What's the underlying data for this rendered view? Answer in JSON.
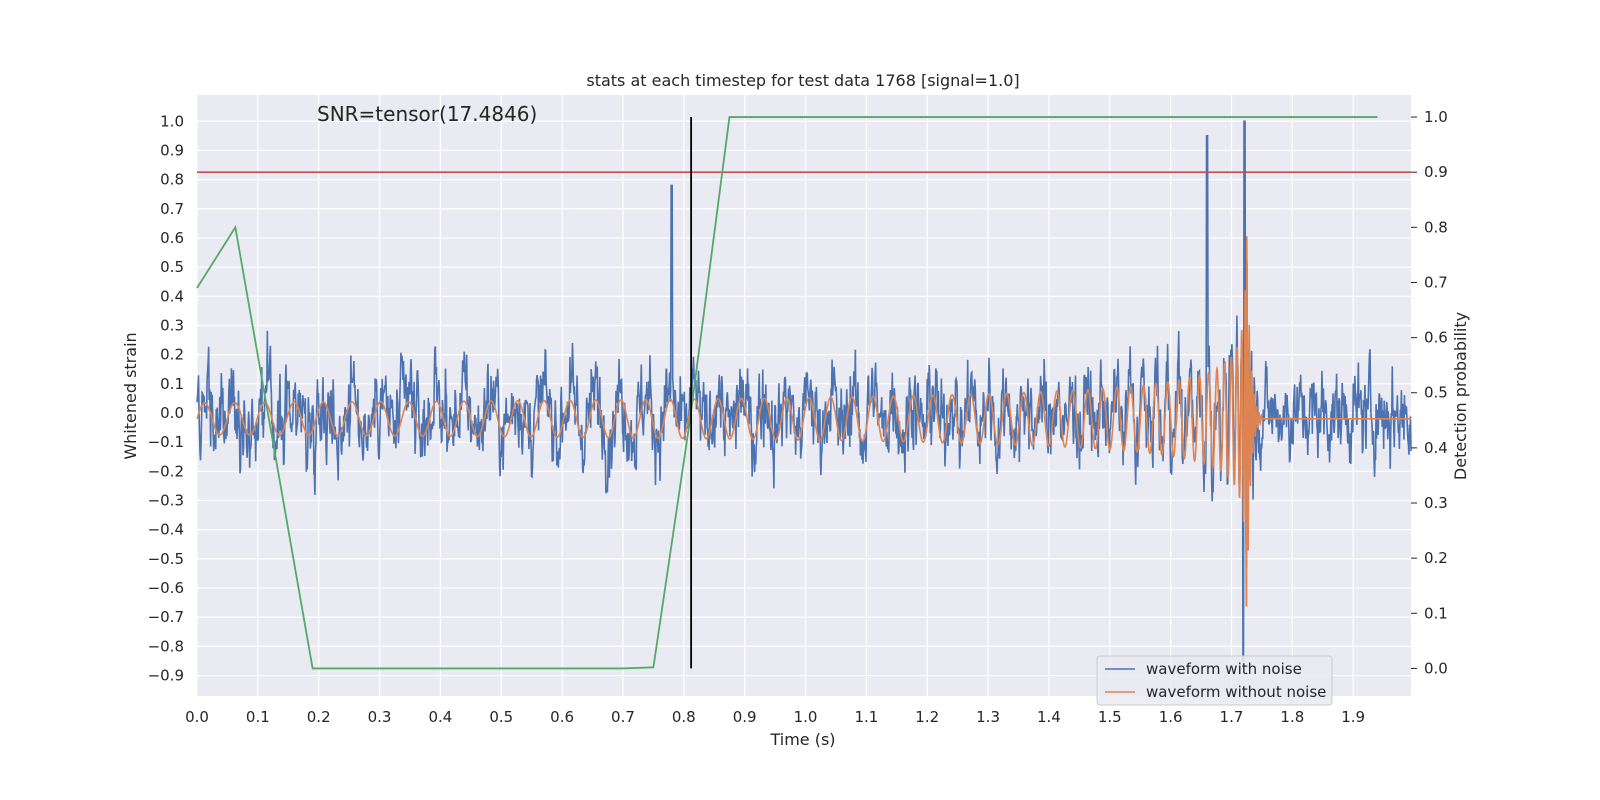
{
  "chart_data": {
    "type": "line",
    "title": "stats at each timestep for test data 1768 [signal=1.0]",
    "annotation": "SNR=tensor(17.4846)",
    "xlabel": "Time (s)",
    "ylabel_left": "Whitened strain",
    "ylabel_right": "Detection probability",
    "xlim": [
      0.0,
      1.995
    ],
    "ylim_left": [
      -0.97,
      1.09
    ],
    "ylim_right": [
      -0.05,
      1.04
    ],
    "x_ticks": [
      "0.0",
      "0.1",
      "0.2",
      "0.3",
      "0.4",
      "0.5",
      "0.6",
      "0.7",
      "0.8",
      "0.9",
      "1.0",
      "1.1",
      "1.2",
      "1.3",
      "1.4",
      "1.5",
      "1.6",
      "1.7",
      "1.8",
      "1.9"
    ],
    "y_ticks_left": [
      "1.0",
      "0.9",
      "0.8",
      "0.7",
      "0.6",
      "0.5",
      "0.4",
      "0.3",
      "0.2",
      "0.1",
      "0.0",
      "−0.1",
      "−0.2",
      "−0.3",
      "−0.4",
      "−0.5",
      "−0.6",
      "−0.7",
      "−0.8",
      "−0.9"
    ],
    "y_ticks_right": [
      "1.0",
      "0.9",
      "0.8",
      "0.7",
      "0.6",
      "0.5",
      "0.4",
      "0.3",
      "0.2",
      "0.1",
      "0.0"
    ],
    "grid": true,
    "legend_placement": "lower-right",
    "colors": {
      "noise": "#4c72b0",
      "clean": "#dd8452",
      "probability": "#55a868",
      "threshold": "#c44e52",
      "marker": "#000000",
      "axes_bg": "#eaeaf2"
    },
    "series": [
      {
        "name": "waveform with noise",
        "values": "dense noisy strain; range about -0.85 to 1.0, std ~0.22; peaks near 0.78 s (0.78), 1.66 s (0.95), 1.72 s (1.0), min near 1.72 s (-0.85)"
      },
      {
        "name": "waveform without noise",
        "chirp": {
          "t_merger": 1.725,
          "amp_start": 0.055,
          "amp_peak": 0.65,
          "f_start": 20,
          "ringdown_end": 1.75
        }
      },
      {
        "name": "",
        "axis": "right",
        "x": [
          0.0,
          0.063,
          0.19,
          0.25,
          0.7,
          0.75,
          0.81,
          0.875,
          1.94
        ],
        "y": [
          0.69,
          0.8,
          0.0,
          0.0,
          0.0,
          0.002,
          0.45,
          1.0,
          1.0
        ]
      }
    ],
    "threshold": 0.9,
    "marker_time": 0.812,
    "legend": [
      "waveform with noise",
      "waveform without noise"
    ]
  }
}
